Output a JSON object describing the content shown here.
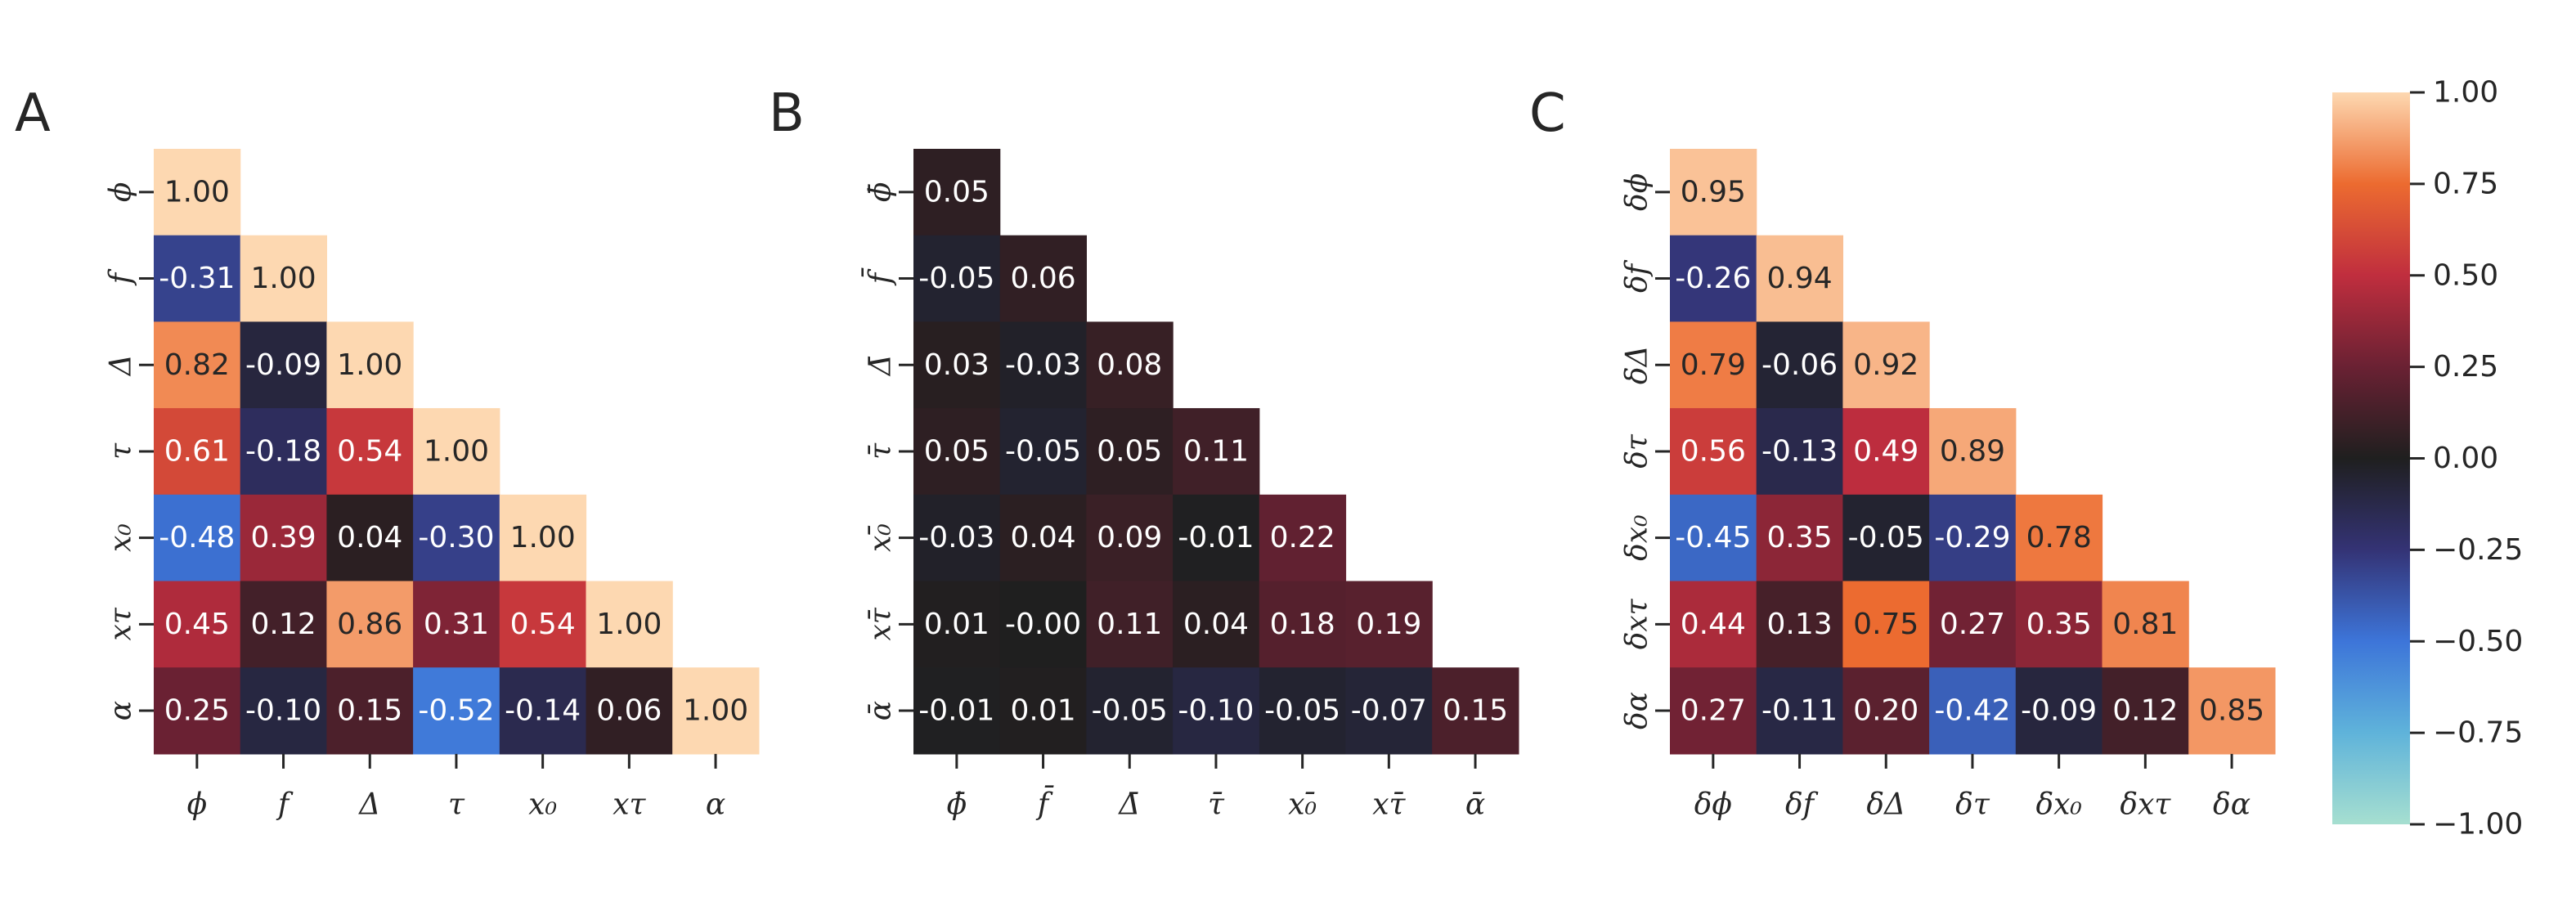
{
  "chart_data": [
    {
      "type": "heatmap",
      "panel_label": "A",
      "row_labels": [
        "ϕ",
        "f",
        "Δ",
        "τ",
        "x₀",
        "xτ",
        "α"
      ],
      "col_labels": [
        "ϕ",
        "f",
        "Δ",
        "τ",
        "x₀",
        "xτ",
        "α"
      ],
      "values": [
        [
          1.0
        ],
        [
          -0.31,
          1.0
        ],
        [
          0.82,
          -0.09,
          1.0
        ],
        [
          0.61,
          -0.18,
          0.54,
          1.0
        ],
        [
          -0.48,
          0.39,
          0.04,
          -0.3,
          1.0
        ],
        [
          0.45,
          0.12,
          0.86,
          0.31,
          0.54,
          1.0
        ],
        [
          0.25,
          -0.1,
          0.15,
          -0.52,
          -0.14,
          0.06,
          1.0
        ]
      ],
      "value_labels": [
        [
          "1.00"
        ],
        [
          "-0.31",
          "1.00"
        ],
        [
          "0.82",
          "-0.09",
          "1.00"
        ],
        [
          "0.61",
          "-0.18",
          "0.54",
          "1.00"
        ],
        [
          "-0.48",
          "0.39",
          "0.04",
          "-0.30",
          "1.00"
        ],
        [
          "0.45",
          "0.12",
          "0.86",
          "0.31",
          "0.54",
          "1.00"
        ],
        [
          "0.25",
          "-0.10",
          "0.15",
          "-0.52",
          "-0.14",
          "0.06",
          "1.00"
        ]
      ]
    },
    {
      "type": "heatmap",
      "panel_label": "B",
      "row_labels": [
        "ϕ̄",
        "f̄",
        "Δ̄",
        "τ̄",
        "x₀̄",
        "xτ̄",
        "ᾱ"
      ],
      "col_labels": [
        "ϕ̄",
        "f̄",
        "Δ̄",
        "τ̄",
        "x₀̄",
        "xτ̄",
        "ᾱ"
      ],
      "values": [
        [
          0.05
        ],
        [
          -0.05,
          0.06
        ],
        [
          0.03,
          -0.03,
          0.08
        ],
        [
          0.05,
          -0.05,
          0.05,
          0.11
        ],
        [
          -0.03,
          0.04,
          0.09,
          -0.01,
          0.22
        ],
        [
          0.01,
          -0.0,
          0.11,
          0.04,
          0.18,
          0.19
        ],
        [
          -0.01,
          0.01,
          -0.05,
          -0.1,
          -0.05,
          -0.07,
          0.15
        ]
      ],
      "value_labels": [
        [
          "0.05"
        ],
        [
          "-0.05",
          "0.06"
        ],
        [
          "0.03",
          "-0.03",
          "0.08"
        ],
        [
          "0.05",
          "-0.05",
          "0.05",
          "0.11"
        ],
        [
          "-0.03",
          "0.04",
          "0.09",
          "-0.01",
          "0.22"
        ],
        [
          "0.01",
          "-0.00",
          "0.11",
          "0.04",
          "0.18",
          "0.19"
        ],
        [
          "-0.01",
          "0.01",
          "-0.05",
          "-0.10",
          "-0.05",
          "-0.07",
          "0.15"
        ]
      ]
    },
    {
      "type": "heatmap",
      "panel_label": "C",
      "row_labels": [
        "δϕ",
        "δf",
        "δΔ",
        "δτ",
        "δx₀",
        "δxτ",
        "δα"
      ],
      "col_labels": [
        "δϕ",
        "δf",
        "δΔ",
        "δτ",
        "δx₀",
        "δxτ",
        "δα"
      ],
      "values": [
        [
          0.95
        ],
        [
          -0.26,
          0.94
        ],
        [
          0.79,
          -0.06,
          0.92
        ],
        [
          0.56,
          -0.13,
          0.49,
          0.89
        ],
        [
          -0.45,
          0.35,
          -0.05,
          -0.29,
          0.78
        ],
        [
          0.44,
          0.13,
          0.75,
          0.27,
          0.35,
          0.81
        ],
        [
          0.27,
          -0.11,
          0.2,
          -0.42,
          -0.09,
          0.12,
          0.85
        ]
      ],
      "value_labels": [
        [
          "0.95"
        ],
        [
          "-0.26",
          "0.94"
        ],
        [
          "0.79",
          "-0.06",
          "0.92"
        ],
        [
          "0.56",
          "-0.13",
          "0.49",
          "0.89"
        ],
        [
          "-0.45",
          "0.35",
          "-0.05",
          "-0.29",
          "0.78"
        ],
        [
          "0.44",
          "0.13",
          "0.75",
          "0.27",
          "0.35",
          "0.81"
        ],
        [
          "0.27",
          "-0.11",
          "0.20",
          "-0.42",
          "-0.09",
          "0.12",
          "0.85"
        ]
      ]
    }
  ],
  "colorbar": {
    "vmin": -1.0,
    "vmax": 1.0,
    "ticks": [
      1.0,
      0.75,
      0.5,
      0.25,
      0.0,
      -0.25,
      -0.5,
      -0.75,
      -1.0
    ],
    "tick_labels": [
      "1.00",
      "0.75",
      "0.50",
      "0.25",
      "0.00",
      "−0.25",
      "−0.50",
      "−0.75",
      "−1.00"
    ],
    "colormap": "icefire",
    "stops": [
      {
        "v": -1.0,
        "c": "#a6dfd0"
      },
      {
        "v": -0.75,
        "c": "#5fb3da"
      },
      {
        "v": -0.5,
        "c": "#3d75d9"
      },
      {
        "v": -0.25,
        "c": "#343375"
      },
      {
        "v": 0.0,
        "c": "#1f1f1f"
      },
      {
        "v": 0.25,
        "c": "#6a2133"
      },
      {
        "v": 0.5,
        "c": "#c02e3e"
      },
      {
        "v": 0.75,
        "c": "#ec6b30"
      },
      {
        "v": 1.0,
        "c": "#fdd8b1"
      }
    ]
  }
}
